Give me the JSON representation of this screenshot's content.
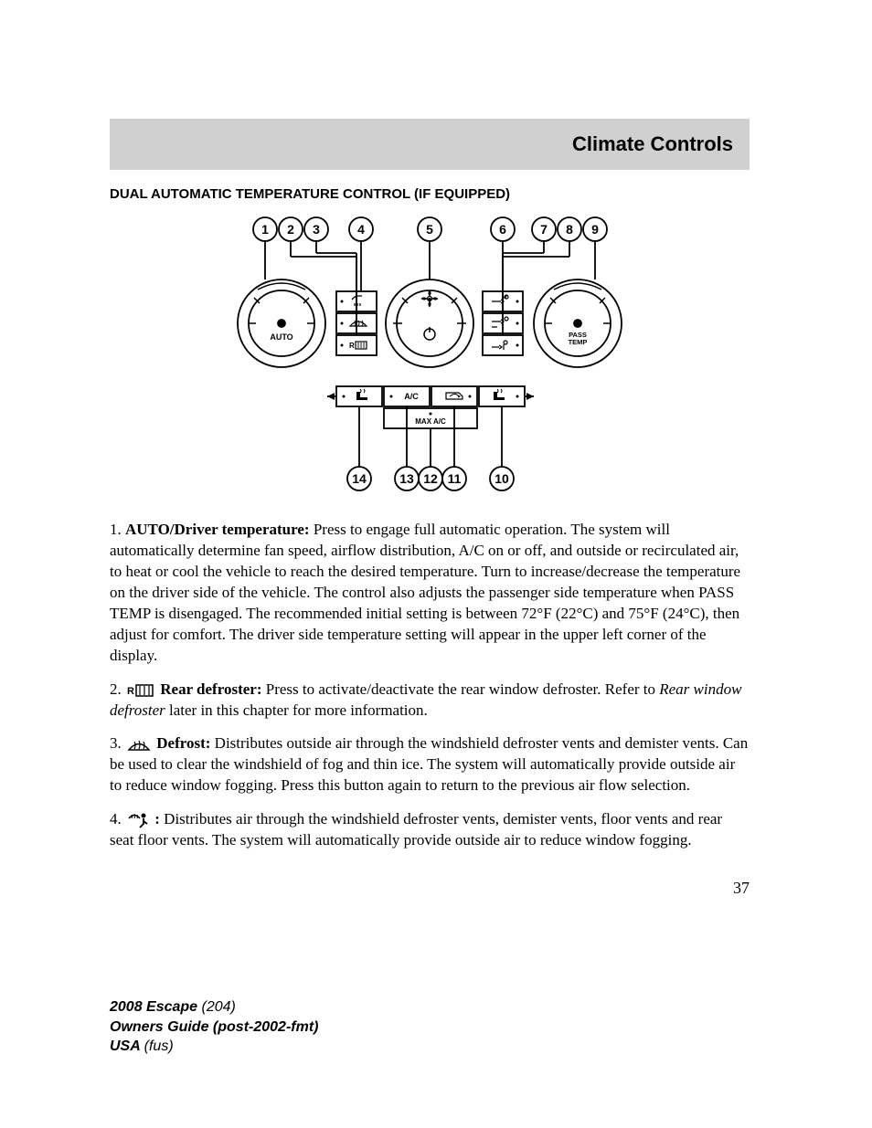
{
  "header": {
    "title": "Climate Controls"
  },
  "section": {
    "title": "DUAL AUTOMATIC TEMPERATURE CONTROL (IF EQUIPPED)"
  },
  "diagram": {
    "top_callouts": [
      "1",
      "2",
      "3",
      "4",
      "5",
      "6",
      "7",
      "8",
      "9"
    ],
    "bottom_callouts": [
      "14",
      "13",
      "12",
      "11",
      "10"
    ],
    "left_dial": "AUTO",
    "right_dial_line1": "PASS",
    "right_dial_line2": "TEMP",
    "buttons_row2": [
      "A/C"
    ],
    "buttons_row3": "MAX A/C",
    "rear_defrost_prefix": "R",
    "colors": {
      "stroke": "#000000",
      "fill": "#ffffff"
    }
  },
  "paragraphs": {
    "p1": {
      "num": "1. ",
      "label": "AUTO/Driver temperature:",
      "text": " Press to engage full automatic operation. The system will automatically determine fan speed, airflow distribution, A/C on or off, and outside or recirculated air, to heat or cool the vehicle to reach the desired temperature. Turn to increase/decrease the temperature on the driver side of the vehicle. The control also adjusts the passenger side temperature when PASS TEMP is disengaged. The recommended initial setting is between 72°F (22°C) and 75°F (24°C), then adjust for comfort. The driver side temperature setting will appear in the upper left corner of the display."
    },
    "p2": {
      "num": "2. ",
      "label": "Rear defroster:",
      "text_a": " Press to activate/deactivate the rear window defroster. Refer to ",
      "italic": "Rear window defroster",
      "text_b": " later in this chapter for more information."
    },
    "p3": {
      "num": "3. ",
      "label": "Defrost:",
      "text": " Distributes outside air through the windshield defroster vents and demister vents. Can be used to clear the windshield of fog and thin ice. The system will automatically provide outside air to reduce window fogging. Press this button again to return to the previous air flow selection."
    },
    "p4": {
      "num": "4. ",
      "label": ":",
      "text": " Distributes air through the windshield defroster vents, demister vents, floor vents and rear seat floor vents. The system will automatically provide outside air to reduce window fogging."
    }
  },
  "page_number": "37",
  "footer": {
    "line1a": "2008 Escape ",
    "line1b": "(204)",
    "line2": "Owners Guide (post-2002-fmt)",
    "line3a": "USA ",
    "line3b": "(fus)"
  }
}
